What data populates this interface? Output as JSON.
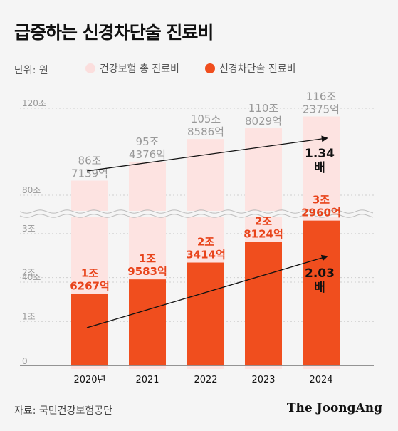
{
  "title": "급증하는 신경차단술 진료비",
  "unit": "단위: 원",
  "legend": [
    {
      "label": "건강보험 총 진료비",
      "color": "#fbdedd"
    },
    {
      "label": "신경차단술 진료비",
      "color": "#f04e1e"
    }
  ],
  "source": "자료: 국민건강보험공단",
  "logo": "The JoongAng",
  "chart_data": {
    "type": "bar",
    "categories": [
      "2020년",
      "2021",
      "2022",
      "2023",
      "2024"
    ],
    "series": [
      {
        "name": "건강보험 총 진료비",
        "unit": "조",
        "values": [
          86.7139,
          95.4376,
          105.8586,
          110.8029,
          116.2375
        ],
        "labels": [
          [
            "86조",
            "7139억"
          ],
          [
            "95조",
            "4376억"
          ],
          [
            "105조",
            "8586억"
          ],
          [
            "110조",
            "8029억"
          ],
          [
            "116조",
            "2375억"
          ]
        ],
        "axis": {
          "ylim": [
            0,
            120
          ],
          "ticks": [
            "120조",
            "80조",
            "40조"
          ],
          "tick_values": [
            120,
            80,
            40
          ]
        },
        "growth_label": [
          "1.34",
          "배"
        ]
      },
      {
        "name": "신경차단술 진료비",
        "unit": "조",
        "values": [
          1.6267,
          1.9583,
          2.3414,
          2.8124,
          3.296
        ],
        "labels": [
          [
            "1조",
            "6267억"
          ],
          [
            "1조",
            "9583억"
          ],
          [
            "2조",
            "3414억"
          ],
          [
            "2조",
            "8124억"
          ],
          [
            "3조",
            "2960억"
          ]
        ],
        "axis": {
          "ylim": [
            0,
            3.5
          ],
          "ticks": [
            "3조",
            "2조",
            "1조",
            "0"
          ],
          "tick_values": [
            3,
            2,
            1,
            0
          ]
        },
        "growth_label": [
          "2.03",
          "배"
        ]
      }
    ]
  }
}
